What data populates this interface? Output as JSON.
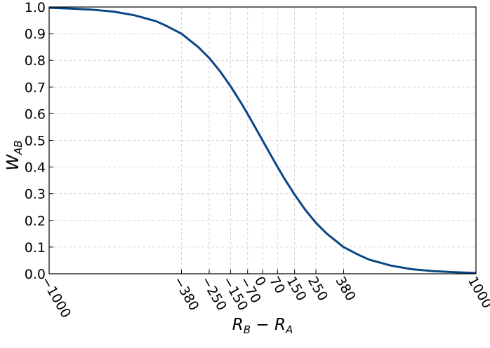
{
  "chart_data": {
    "type": "line",
    "title": "",
    "xlabel": {
      "main": "R",
      "sub1": "B",
      "mid": " − R",
      "sub2": "A"
    },
    "ylabel": {
      "main": "W",
      "sub": "AB"
    },
    "xlim": [
      -1000,
      1000
    ],
    "ylim": [
      0.0,
      1.0
    ],
    "x_ticks": [
      -1000,
      -380,
      -250,
      -150,
      -70,
      0,
      70,
      150,
      250,
      380,
      1000
    ],
    "x_tick_labels": [
      "−1000",
      "−380",
      "−250",
      "−150",
      "−70",
      "0",
      "70",
      "150",
      "250",
      "380",
      "1000"
    ],
    "y_ticks": [
      0.0,
      0.1,
      0.2,
      0.3,
      0.4,
      0.5,
      0.6,
      0.7,
      0.8,
      0.9,
      1.0
    ],
    "y_tick_labels": [
      "0.0",
      "0.1",
      "0.2",
      "0.3",
      "0.4",
      "0.5",
      "0.6",
      "0.7",
      "0.8",
      "0.9",
      "1.0"
    ],
    "grid": true,
    "line_color": "#0a4585",
    "grid_color": "#cccccc",
    "series": [
      {
        "x": [
          -1000,
          -900,
          -800,
          -700,
          -600,
          -500,
          -450,
          -380,
          -300,
          -250,
          -200,
          -150,
          -100,
          -70,
          -35,
          0,
          35,
          70,
          100,
          150,
          200,
          250,
          300,
          380,
          450,
          500,
          600,
          700,
          800,
          900,
          1000
        ],
        "y": [
          0.997,
          0.994,
          0.99,
          0.983,
          0.969,
          0.947,
          0.929,
          0.9,
          0.849,
          0.809,
          0.76,
          0.703,
          0.64,
          0.599,
          0.55,
          0.5,
          0.45,
          0.401,
          0.36,
          0.297,
          0.24,
          0.191,
          0.151,
          0.1,
          0.071,
          0.053,
          0.031,
          0.017,
          0.01,
          0.006,
          0.003
        ]
      }
    ]
  }
}
